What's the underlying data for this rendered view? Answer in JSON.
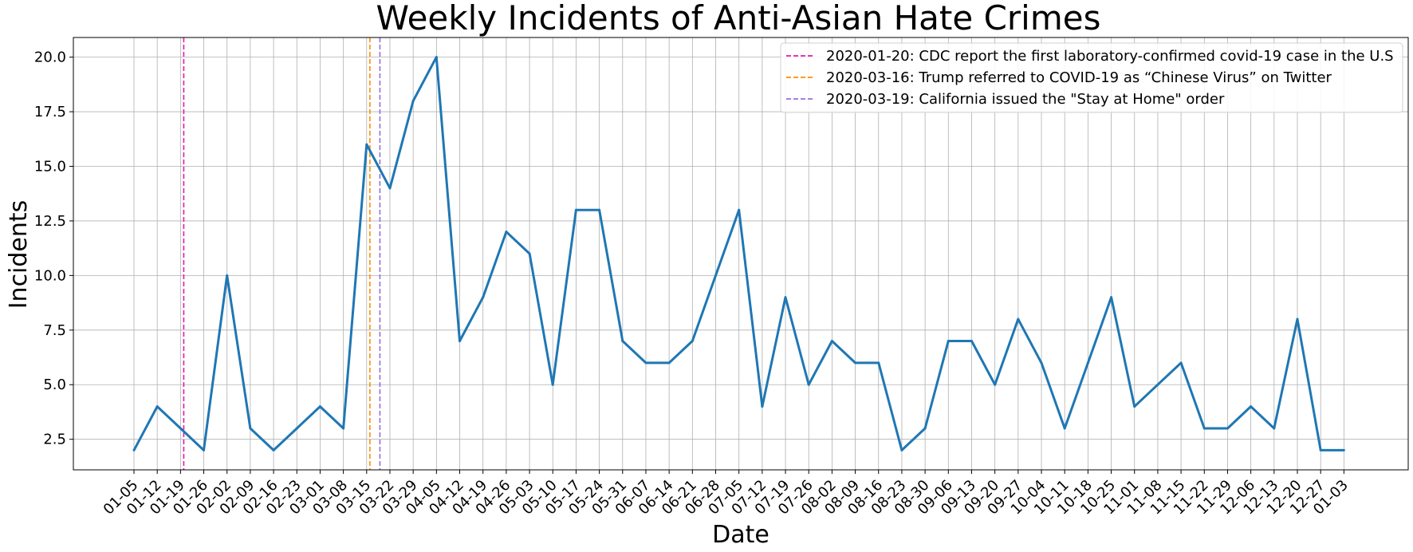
{
  "chart_data": {
    "type": "line",
    "title": "Weekly Incidents of Anti-Asian Hate Crimes",
    "xlabel": "Date",
    "ylabel": "Incidents",
    "grid": true,
    "legend_position": "top-right",
    "ylim": [
      1.1,
      20.9
    ],
    "yticks": [
      "2.5",
      "5.0",
      "7.5",
      "10.0",
      "12.5",
      "15.0",
      "17.5",
      "20.0"
    ],
    "x": [
      "01-05",
      "01-12",
      "01-19",
      "01-26",
      "02-02",
      "02-09",
      "02-16",
      "02-23",
      "03-01",
      "03-08",
      "03-15",
      "03-22",
      "03-29",
      "04-05",
      "04-12",
      "04-19",
      "04-26",
      "05-03",
      "05-10",
      "05-17",
      "05-24",
      "05-31",
      "06-07",
      "06-14",
      "06-21",
      "06-28",
      "07-05",
      "07-12",
      "07-19",
      "07-26",
      "08-02",
      "08-09",
      "08-16",
      "08-23",
      "08-30",
      "09-06",
      "09-13",
      "09-20",
      "09-27",
      "10-04",
      "10-11",
      "10-18",
      "10-25",
      "11-01",
      "11-08",
      "11-15",
      "11-22",
      "11-29",
      "12-06",
      "12-13",
      "12-20",
      "12-27",
      "01-03"
    ],
    "series": [
      {
        "color": "#1f77b4",
        "values": [
          2,
          4,
          3,
          2,
          10,
          3,
          2,
          3,
          4,
          3,
          16,
          14,
          18,
          20,
          7,
          9,
          12,
          11,
          5,
          13,
          13,
          7,
          6,
          6,
          7,
          10,
          13,
          4,
          9,
          5,
          7,
          6,
          6,
          2,
          3,
          7,
          7,
          5,
          8,
          6,
          3,
          6,
          9,
          4,
          5,
          6,
          3,
          3,
          4,
          3,
          8,
          2,
          2
        ]
      }
    ],
    "vlines": [
      {
        "position_weeks": 2.14,
        "color": "#e41aaa",
        "label": "2020-01-20: CDC report the first laboratory-confirmed covid-19 case in the U.S"
      },
      {
        "position_weeks": 10.14,
        "color": "#ff8c00",
        "label": "2020-03-16: Trump referred to COVID-19 as “Chinese Virus” on Twitter"
      },
      {
        "position_weeks": 10.57,
        "color": "#9370db",
        "label": "2020-03-19: California issued the \"Stay at Home\" order"
      }
    ]
  }
}
